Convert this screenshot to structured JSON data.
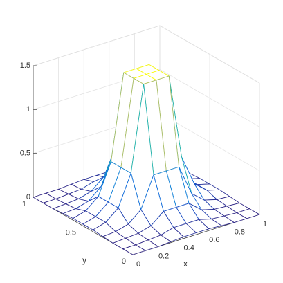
{
  "chart_data": {
    "type": "mesh",
    "x": [
      0,
      0.1,
      0.2,
      0.3,
      0.4,
      0.5,
      0.6,
      0.7,
      0.8,
      0.9,
      1
    ],
    "y": [
      0,
      0.1,
      0.2,
      0.3,
      0.4,
      0.5,
      0.6,
      0.7,
      0.8,
      0.9,
      1
    ],
    "z": [
      [
        0,
        0,
        0,
        0.01,
        0.02,
        0.02,
        0.02,
        0.01,
        0,
        0,
        0
      ],
      [
        0,
        0,
        0.01,
        0.02,
        0.06,
        0.06,
        0.06,
        0.02,
        0.01,
        0,
        0
      ],
      [
        0,
        0.01,
        0.02,
        0.06,
        0.18,
        0.18,
        0.18,
        0.06,
        0.02,
        0.01,
        0
      ],
      [
        0.01,
        0.02,
        0.06,
        0.18,
        0.53,
        0.53,
        0.53,
        0.18,
        0.06,
        0.02,
        0.01
      ],
      [
        0.02,
        0.06,
        0.18,
        0.53,
        1.5,
        1.5,
        1.5,
        0.53,
        0.18,
        0.06,
        0.02
      ],
      [
        0.02,
        0.06,
        0.18,
        0.53,
        1.5,
        1.5,
        1.5,
        0.53,
        0.18,
        0.06,
        0.02
      ],
      [
        0.02,
        0.06,
        0.18,
        0.53,
        1.5,
        1.5,
        1.5,
        0.53,
        0.18,
        0.06,
        0.02
      ],
      [
        0.01,
        0.02,
        0.06,
        0.18,
        0.53,
        0.53,
        0.53,
        0.18,
        0.06,
        0.02,
        0.01
      ],
      [
        0,
        0.01,
        0.02,
        0.06,
        0.18,
        0.18,
        0.18,
        0.06,
        0.02,
        0.01,
        0
      ],
      [
        0,
        0,
        0.01,
        0.02,
        0.06,
        0.06,
        0.06,
        0.02,
        0.01,
        0,
        0
      ],
      [
        0,
        0,
        0,
        0.01,
        0.02,
        0.02,
        0.02,
        0.01,
        0,
        0,
        0
      ]
    ],
    "xlabel": "x",
    "ylabel": "y",
    "xlim": [
      0,
      1
    ],
    "ylim": [
      0,
      1
    ],
    "zlim": [
      0,
      1.5
    ],
    "xticks": [
      0,
      0.2,
      0.4,
      0.6,
      0.8,
      1
    ],
    "yticks": [
      0,
      0.5,
      1
    ],
    "zticks": [
      0,
      0.5,
      1,
      1.5
    ],
    "grid": true
  }
}
